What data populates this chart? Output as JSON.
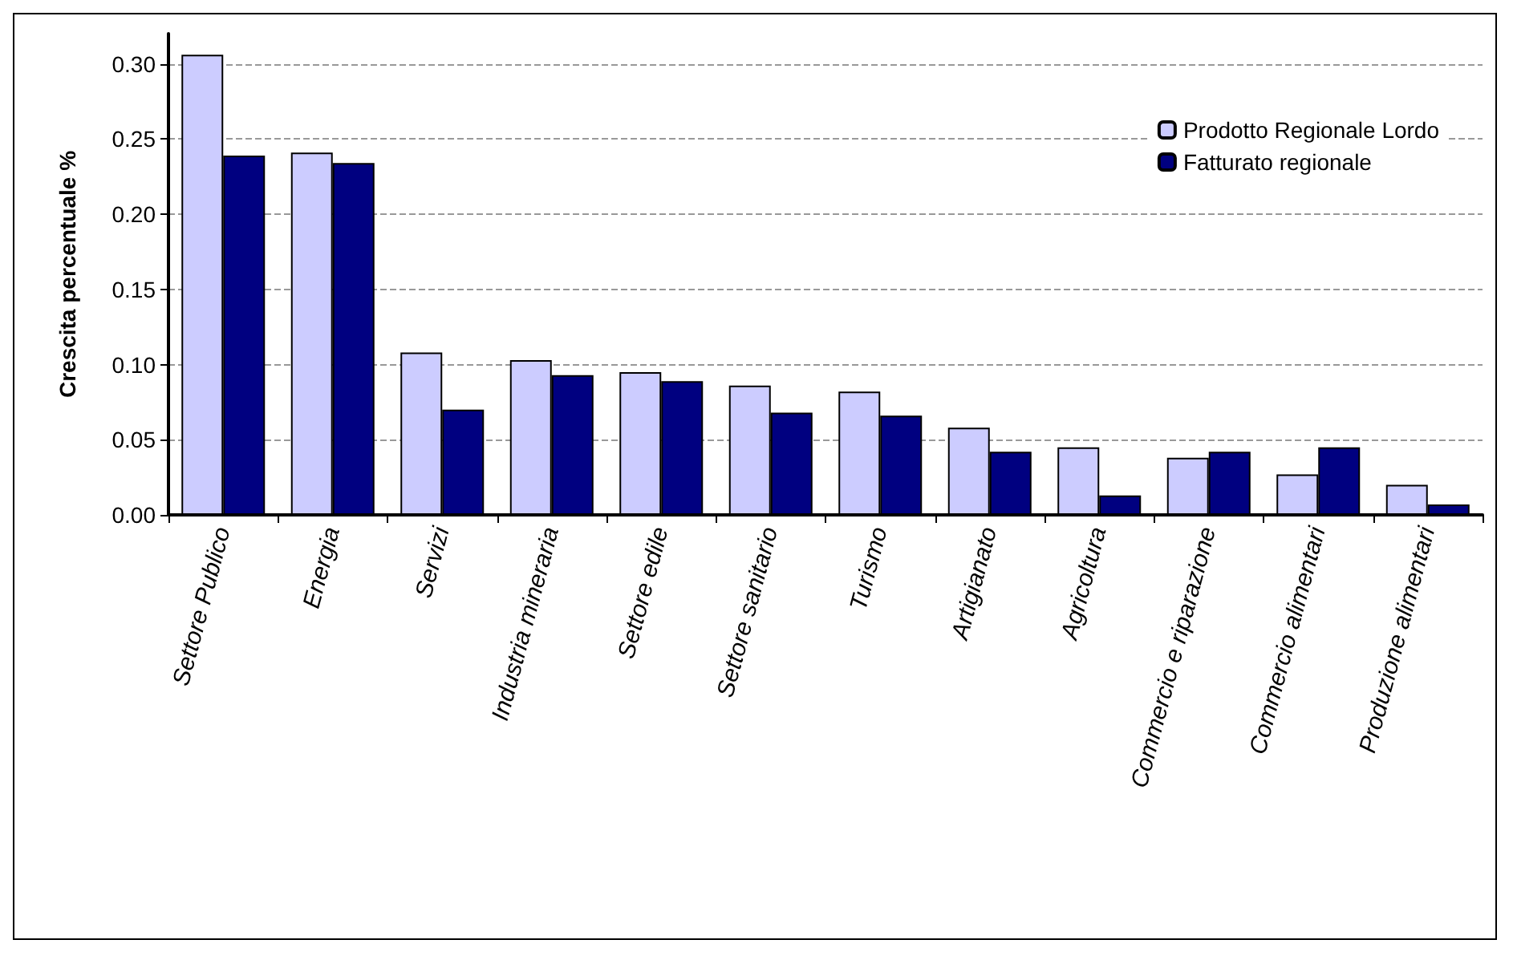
{
  "chart_data": {
    "type": "bar",
    "ylabel": "Crescita percentuale %",
    "categories": [
      "Settore Publico",
      "Energia",
      "Servizi",
      "Industria mineraria",
      "Settore edile",
      "Settore sanitario",
      "Turismo",
      "Artigianato",
      "Agricoltura",
      "Commercio e riparazione",
      "Commercio alimentari",
      "Produzione alimentari"
    ],
    "series": [
      {
        "name": "Prodotto Regionale Lordo",
        "color": "#ccccff",
        "values": [
          0.306,
          0.241,
          0.108,
          0.103,
          0.095,
          0.086,
          0.082,
          0.058,
          0.045,
          0.038,
          0.027,
          0.02
        ]
      },
      {
        "name": "Fatturato regionale",
        "color": "#000080",
        "values": [
          0.239,
          0.234,
          0.07,
          0.093,
          0.089,
          0.068,
          0.066,
          0.042,
          0.013,
          0.042,
          0.045,
          0.007
        ]
      }
    ],
    "ylim": [
      0,
      0.32
    ],
    "yticks": [
      {
        "value": 0,
        "label": "0.00"
      },
      {
        "value": 0.05,
        "label": "0.05"
      },
      {
        "value": 0.1,
        "label": "0.10"
      },
      {
        "value": 0.15,
        "label": "0.15"
      },
      {
        "value": 0.2,
        "label": "0.20"
      },
      {
        "value": 0.25,
        "label": "0.25"
      },
      {
        "value": 0.3,
        "label": "0.30"
      }
    ],
    "grid": "y",
    "legend": "top right"
  }
}
